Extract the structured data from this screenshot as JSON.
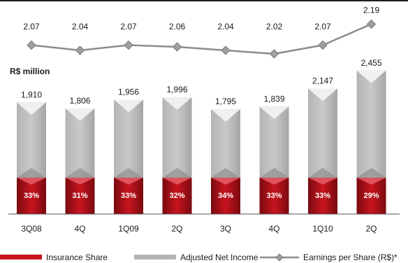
{
  "chart_data": {
    "type": "bar",
    "unit_label": "R$ million",
    "categories": [
      "3Q08",
      "4Q",
      "1Q09",
      "2Q",
      "3Q",
      "4Q",
      "1Q10",
      "2Q"
    ],
    "series": [
      {
        "name": "Adjusted Net Income",
        "type": "bar",
        "values": [
          1910,
          1806,
          1956,
          1996,
          1795,
          1839,
          2147,
          2455
        ],
        "labels": [
          "1,910",
          "1,806",
          "1,956",
          "1,996",
          "1,795",
          "1,839",
          "2,147",
          "2,455"
        ]
      },
      {
        "name": "Insurance Share",
        "type": "bar-segment",
        "values": [
          33,
          31,
          33,
          32,
          34,
          33,
          33,
          29
        ],
        "labels": [
          "33%",
          "31%",
          "33%",
          "32%",
          "34%",
          "33%",
          "33%",
          "29%"
        ]
      },
      {
        "name": "Earnings per Share (R$)*",
        "type": "line",
        "values": [
          2.07,
          2.04,
          2.07,
          2.06,
          2.04,
          2.02,
          2.07,
          2.19
        ],
        "labels": [
          "2.07",
          "2.04",
          "2.07",
          "2.06",
          "2.04",
          "2.02",
          "2.07",
          "2.19"
        ]
      }
    ],
    "legend_position": "bottom",
    "grid": false
  },
  "colors": {
    "insurance": "#c8141e",
    "insurance_dark": "#7a0a10",
    "net_income": "#b4b4b4",
    "net_income_light": "#f2f2f2",
    "eps_line": "#8c8c8c",
    "eps_marker": "#a0a0a0",
    "text": "#1a1a1a"
  }
}
